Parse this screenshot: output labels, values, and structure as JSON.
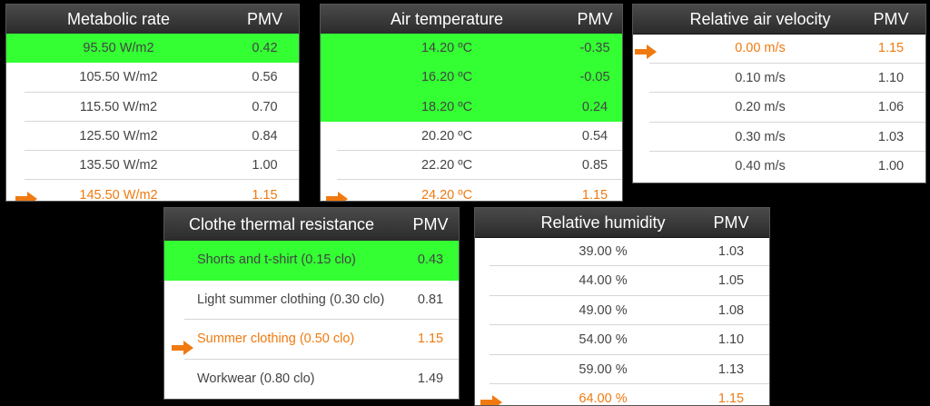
{
  "colors": {
    "highlight": "#33ff33",
    "selected": "#f07a10",
    "header": "#3a3a3a"
  },
  "panels": {
    "metabolic": {
      "title": "Metabolic rate",
      "pmv_header": "PMV",
      "rows": [
        {
          "label": "95.50 W/m2",
          "pmv": "0.42",
          "green": true
        },
        {
          "label": "105.50 W/m2",
          "pmv": "0.56"
        },
        {
          "label": "115.50 W/m2",
          "pmv": "0.70"
        },
        {
          "label": "125.50 W/m2",
          "pmv": "0.84"
        },
        {
          "label": "135.50 W/m2",
          "pmv": "1.00"
        },
        {
          "label": "145.50 W/m2",
          "pmv": "1.15",
          "selected": true
        }
      ]
    },
    "air_temperature": {
      "title": "Air temperature",
      "pmv_header": "PMV",
      "rows": [
        {
          "label": "14.20 ºC",
          "pmv": "-0.35",
          "green": true
        },
        {
          "label": "16.20 ºC",
          "pmv": "-0.05",
          "green": true
        },
        {
          "label": "18.20 ºC",
          "pmv": "0.24",
          "green": true
        },
        {
          "label": "20.20 ºC",
          "pmv": "0.54"
        },
        {
          "label": "22.20 ºC",
          "pmv": "0.85"
        },
        {
          "label": "24.20 ºC",
          "pmv": "1.15",
          "selected": true
        }
      ]
    },
    "air_velocity": {
      "title": "Relative air velocity",
      "pmv_header": "PMV",
      "rows": [
        {
          "label": "0.00 m/s",
          "pmv": "1.15",
          "selected": true
        },
        {
          "label": "0.10 m/s",
          "pmv": "1.10"
        },
        {
          "label": "0.20 m/s",
          "pmv": "1.06"
        },
        {
          "label": "0.30 m/s",
          "pmv": "1.03"
        },
        {
          "label": "0.40 m/s",
          "pmv": "1.00"
        }
      ]
    },
    "clothing": {
      "title": "Clothe thermal resistance",
      "pmv_header": "PMV",
      "rows": [
        {
          "label": "Shorts and t-shirt (0.15 clo)",
          "pmv": "0.43",
          "green": true
        },
        {
          "label": "Light summer clothing (0.30 clo)",
          "pmv": "0.81"
        },
        {
          "label": "Summer clothing (0.50 clo)",
          "pmv": "1.15",
          "selected": true
        },
        {
          "label": "Workwear (0.80 clo)",
          "pmv": "1.49"
        }
      ]
    },
    "humidity": {
      "title": "Relative humidity",
      "pmv_header": "PMV",
      "rows": [
        {
          "label": "39.00 %",
          "pmv": "1.03"
        },
        {
          "label": "44.00 %",
          "pmv": "1.05"
        },
        {
          "label": "49.00 %",
          "pmv": "1.08"
        },
        {
          "label": "54.00 %",
          "pmv": "1.10"
        },
        {
          "label": "59.00 %",
          "pmv": "1.13"
        },
        {
          "label": "64.00 %",
          "pmv": "1.15",
          "selected": true
        }
      ]
    }
  }
}
